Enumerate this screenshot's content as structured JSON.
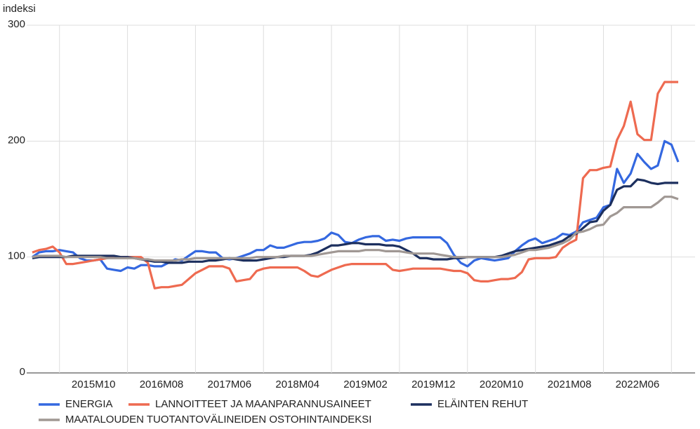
{
  "chart_data": {
    "type": "line",
    "y_axis_label": "indeksi",
    "categories": [
      null,
      null,
      null,
      null,
      null,
      null,
      null,
      null,
      null,
      "2015M10",
      null,
      null,
      null,
      null,
      null,
      null,
      null,
      null,
      null,
      "2016M08",
      null,
      null,
      null,
      null,
      null,
      null,
      null,
      null,
      null,
      "2017M06",
      null,
      null,
      null,
      null,
      null,
      null,
      null,
      null,
      null,
      "2018M04",
      null,
      null,
      null,
      null,
      null,
      null,
      null,
      null,
      null,
      "2019M02",
      null,
      null,
      null,
      null,
      null,
      null,
      null,
      null,
      null,
      "2019M12",
      null,
      null,
      null,
      null,
      null,
      null,
      null,
      null,
      null,
      "2020M10",
      null,
      null,
      null,
      null,
      null,
      null,
      null,
      null,
      null,
      "2021M08",
      null,
      null,
      null,
      null,
      null,
      null,
      null,
      null,
      null,
      "2022M06",
      null,
      null,
      null,
      null,
      null,
      null
    ],
    "series": [
      {
        "name": "ENERGIA",
        "color": "#3468e0",
        "values": [
          100,
          104,
          105,
          105,
          106,
          105,
          104,
          99,
          97,
          97,
          98,
          90,
          89,
          88,
          91,
          90,
          93,
          93,
          92,
          92,
          95,
          98,
          97,
          101,
          105,
          105,
          104,
          104,
          99,
          98,
          99,
          101,
          103,
          106,
          106,
          110,
          108,
          108,
          110,
          112,
          113,
          113,
          114,
          116,
          121,
          119,
          113,
          112,
          115,
          117,
          118,
          118,
          114,
          115,
          114,
          116,
          117,
          117,
          117,
          117,
          117,
          112,
          102,
          95,
          92,
          97,
          99,
          98,
          97,
          98,
          99,
          105,
          110,
          114,
          116,
          112,
          114,
          116,
          120,
          119,
          122,
          130,
          132,
          134,
          143,
          145,
          176,
          164,
          172,
          189,
          182,
          176,
          179,
          200,
          197,
          182
        ]
      },
      {
        "name": "LANNOITTEET JA MAANPARANNUSAINEET",
        "color": "#ee6a50",
        "values": [
          104,
          106,
          107,
          109,
          104,
          94,
          94,
          95,
          96,
          97,
          98,
          99,
          100,
          100,
          100,
          100,
          100,
          95,
          73,
          74,
          74,
          75,
          76,
          81,
          86,
          89,
          92,
          92,
          92,
          90,
          79,
          80,
          81,
          88,
          90,
          91,
          91,
          91,
          91,
          91,
          88,
          84,
          83,
          86,
          89,
          91,
          93,
          94,
          94,
          94,
          94,
          94,
          94,
          89,
          88,
          89,
          90,
          90,
          90,
          90,
          90,
          89,
          88,
          88,
          86,
          80,
          79,
          79,
          80,
          81,
          81,
          82,
          87,
          98,
          99,
          99,
          99,
          100,
          108,
          112,
          115,
          168,
          175,
          175,
          177,
          178,
          201,
          213,
          234,
          206,
          201,
          201,
          241,
          251,
          251,
          251
        ]
      },
      {
        "name": "ELÄINTEN REHUT",
        "color": "#1c2f5e",
        "values": [
          99,
          100,
          100,
          100,
          100,
          100,
          101,
          101,
          101,
          101,
          101,
          101,
          101,
          100,
          100,
          99,
          98,
          97,
          96,
          96,
          95,
          95,
          95,
          96,
          96,
          96,
          97,
          97,
          98,
          99,
          98,
          97,
          97,
          97,
          98,
          99,
          100,
          100,
          101,
          101,
          101,
          102,
          104,
          107,
          110,
          110,
          111,
          112,
          112,
          111,
          111,
          111,
          110,
          110,
          109,
          106,
          103,
          99,
          99,
          98,
          98,
          98,
          99,
          99,
          100,
          100,
          100,
          100,
          100,
          101,
          103,
          105,
          106,
          107,
          108,
          109,
          110,
          112,
          114,
          118,
          120,
          125,
          130,
          131,
          140,
          145,
          158,
          161,
          161,
          167,
          166,
          164,
          163,
          164,
          164,
          164
        ]
      },
      {
        "name": "MAATALOUDEN TUOTANTOVÄLINEIDEN OSTOHINTAINDEKSI",
        "color": "#a09894",
        "values": [
          100,
          101,
          101,
          101,
          101,
          100,
          100,
          100,
          100,
          100,
          100,
          99,
          99,
          99,
          99,
          99,
          98,
          98,
          97,
          97,
          97,
          97,
          98,
          98,
          99,
          99,
          99,
          99,
          99,
          99,
          99,
          99,
          99,
          100,
          100,
          100,
          100,
          101,
          101,
          101,
          101,
          101,
          102,
          103,
          104,
          105,
          105,
          105,
          105,
          106,
          106,
          106,
          105,
          105,
          105,
          104,
          103,
          103,
          103,
          103,
          102,
          101,
          100,
          100,
          100,
          100,
          100,
          100,
          100,
          100,
          101,
          102,
          104,
          106,
          106,
          107,
          108,
          110,
          112,
          115,
          121,
          122,
          124,
          127,
          128,
          135,
          138,
          143,
          143,
          143,
          143,
          143,
          147,
          152,
          152,
          150
        ]
      }
    ],
    "ylim": [
      0,
      300
    ],
    "yticks": [
      0,
      100,
      200,
      300
    ],
    "grid": true,
    "legend": "bottom"
  }
}
